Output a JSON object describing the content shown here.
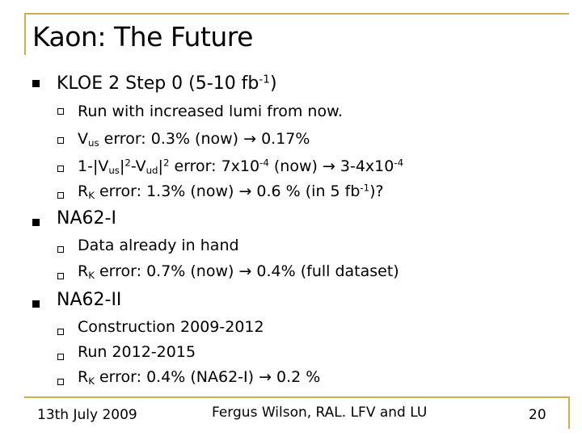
{
  "slide": {
    "title": "Kaon: The Future",
    "sections": [
      {
        "heading": {
          "a": "KLOE 2 Step 0 (5-10 fb",
          "sup": "-1",
          "b": ")"
        },
        "items": [
          {
            "a": "Run with increased lumi from now."
          },
          {
            "a": "V",
            "sub": "us",
            "b": " error: 0.3% (now) → 0.17%"
          },
          {
            "a": "1-|V",
            "sub1": "us",
            "b": "|",
            "sup1": "2",
            "c": "-V",
            "sub2": "ud",
            "d": "|",
            "sup2": "2",
            "e": " error: 7x10",
            "sup3": "-4",
            "f": " (now) → 3-4x10",
            "sup4": "-4"
          },
          {
            "a": "R",
            "sub": "K",
            "b": " error: 1.3% (now) → 0.6 % (in 5 fb",
            "sup": "-1",
            "c": ")?"
          }
        ]
      },
      {
        "heading": {
          "a": "NA62-I"
        },
        "items": [
          {
            "a": "Data already in hand"
          },
          {
            "a": "R",
            "sub": "K",
            "b": " error: 0.7% (now) → 0.4% (full dataset)"
          }
        ]
      },
      {
        "heading": {
          "a": "NA62-II"
        },
        "items": [
          {
            "a": "Construction 2009-2012"
          },
          {
            "a": "Run 2012-2015"
          },
          {
            "a": "R",
            "sub": "K",
            "b": " error: 0.4% (NA62-I) → 0.2 %"
          }
        ]
      }
    ]
  },
  "footer": {
    "date": "13th July 2009",
    "author": "Fergus Wilson, RAL. LFV and LU",
    "page": "20"
  },
  "colors": {
    "frame": "#c8b04a"
  }
}
